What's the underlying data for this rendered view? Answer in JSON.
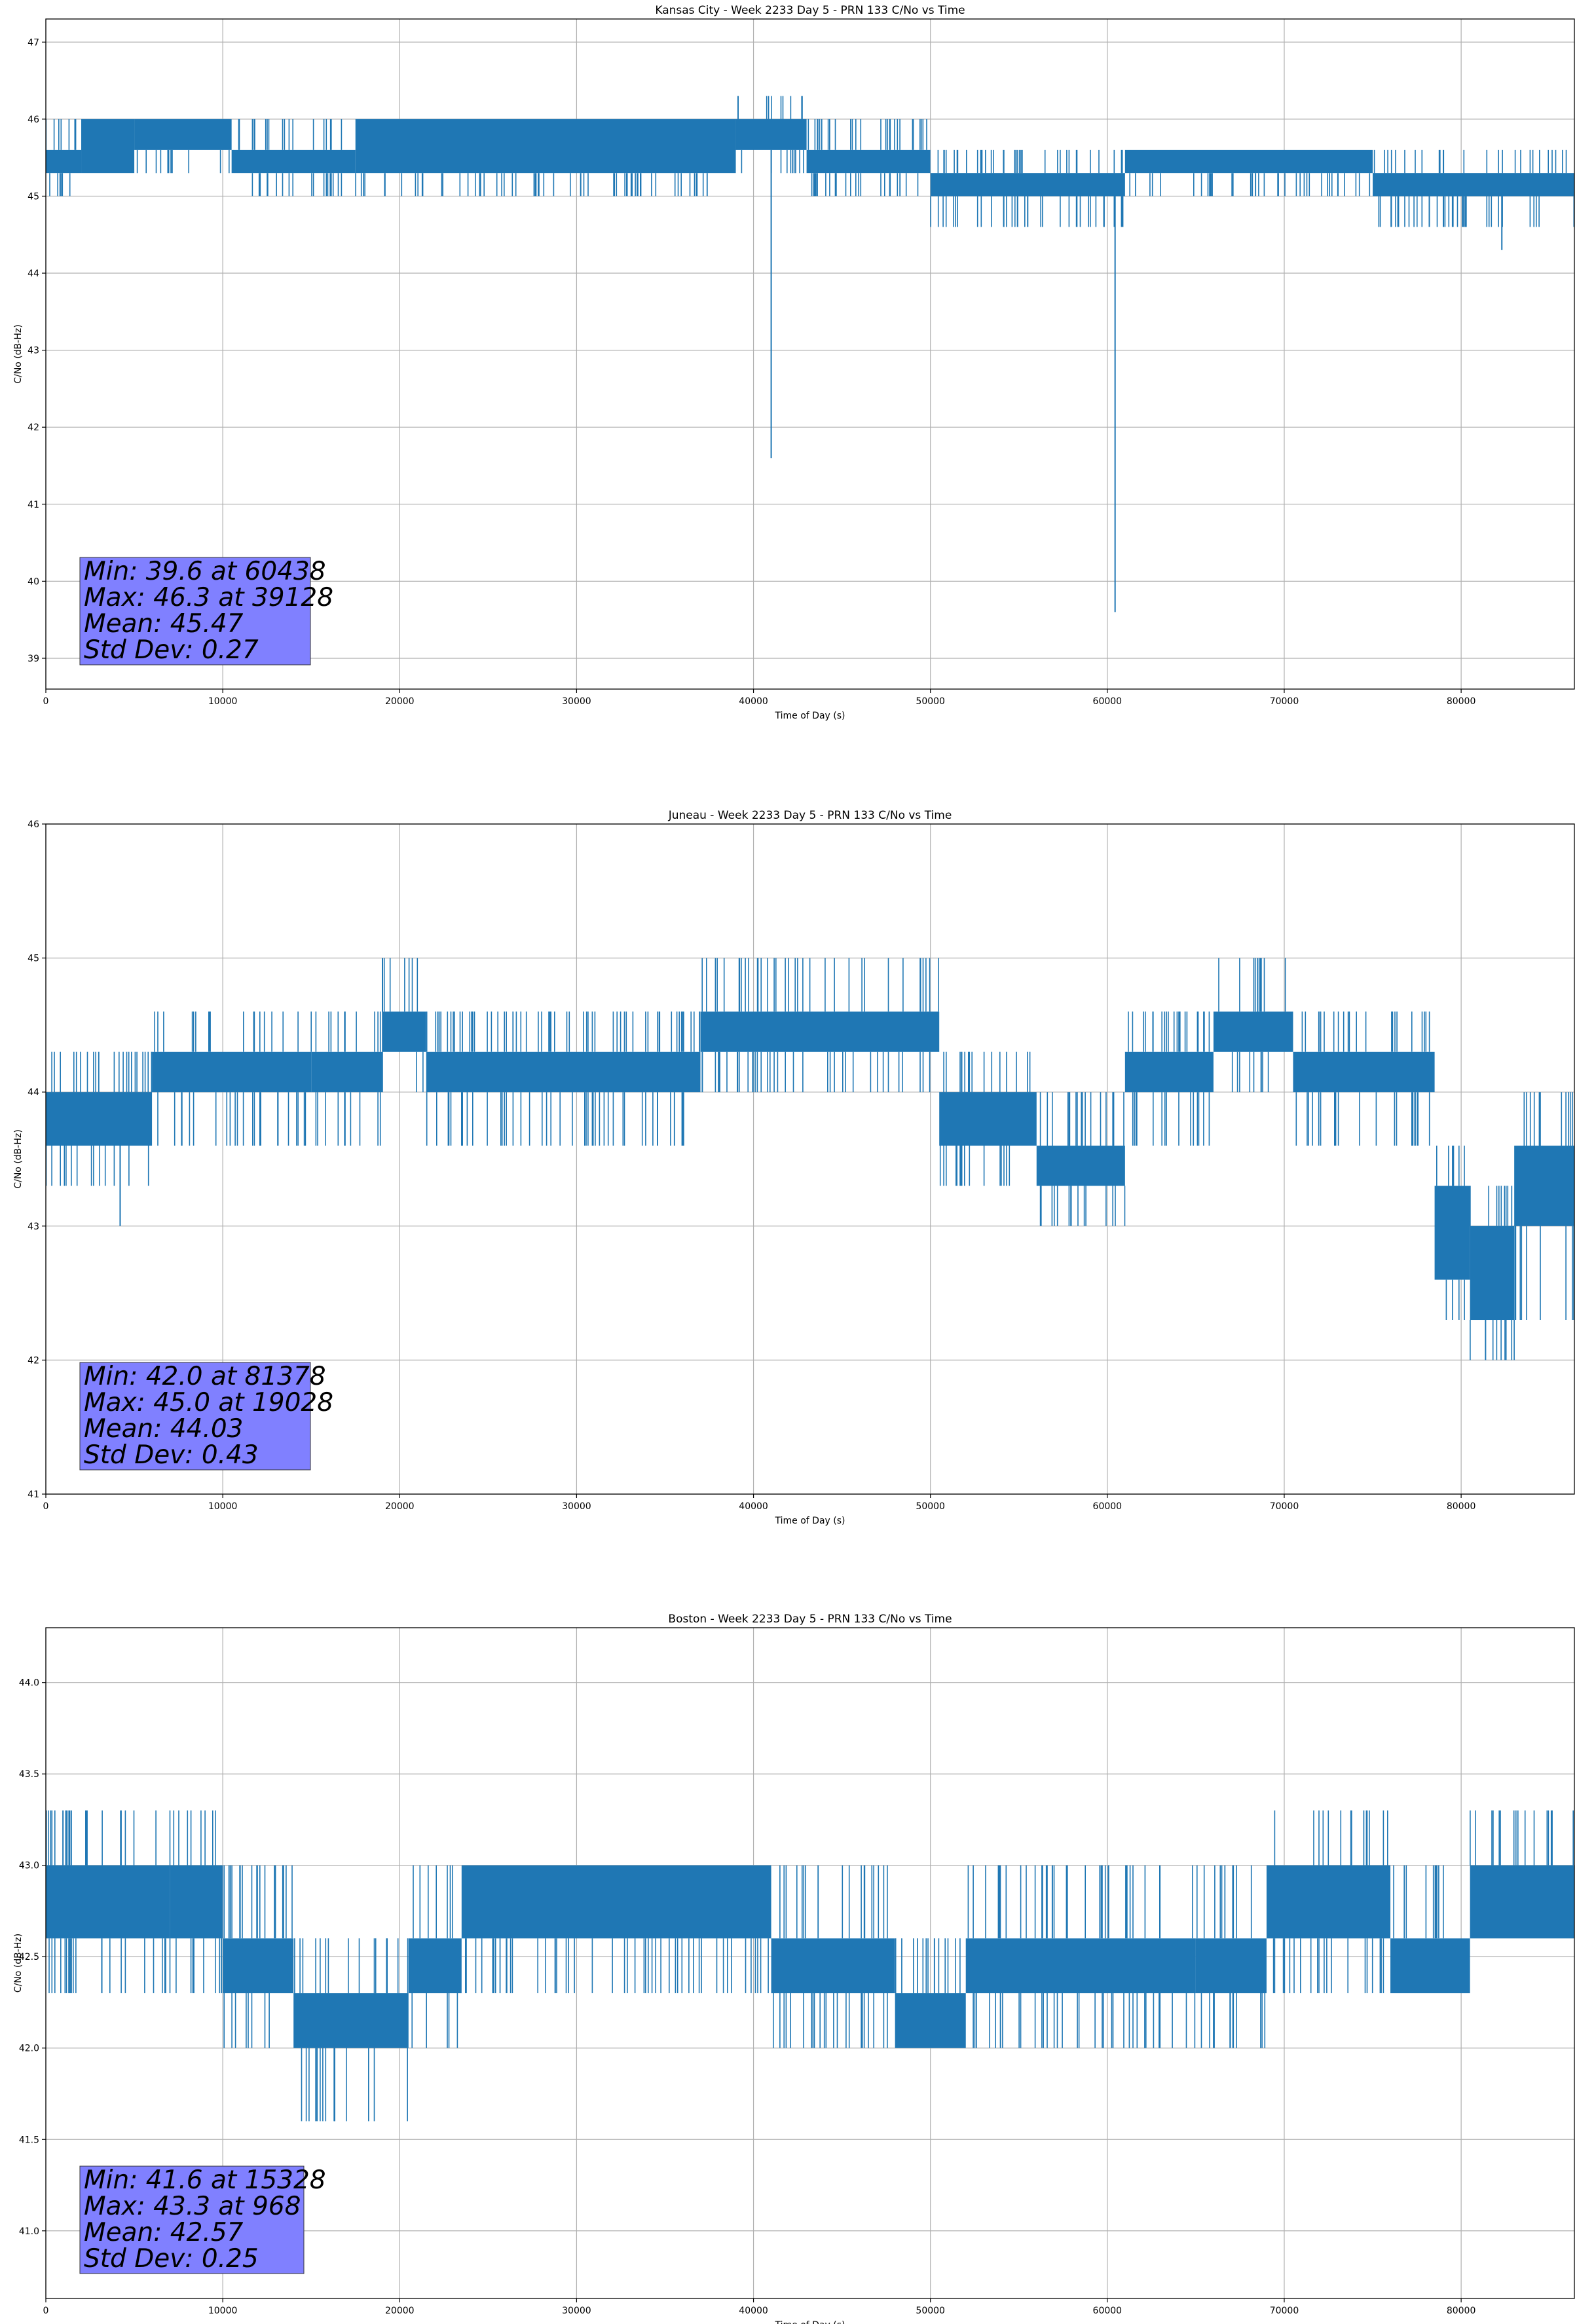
{
  "figure": {
    "colors": {
      "line": "#1f77b4",
      "grid": "#b0b0b0",
      "stats_box": "#8080ff"
    }
  },
  "chart_data": [
    {
      "type": "line",
      "title": "Kansas City - Week 2233 Day 5 - PRN 133 C/No vs Time",
      "xlabel": "Time of Day (s)",
      "ylabel": "C/No (dB-Hz)",
      "xlim": [
        0,
        86400
      ],
      "ylim": [
        38.6,
        47.3
      ],
      "xticks": [
        0,
        10000,
        20000,
        30000,
        40000,
        50000,
        60000,
        70000,
        80000
      ],
      "xtick_labels": [
        "0",
        "10000",
        "20000",
        "30000",
        "40000",
        "50000",
        "60000",
        "70000",
        "80000"
      ],
      "yticks": [
        39,
        40,
        41,
        42,
        43,
        44,
        45,
        46,
        47
      ],
      "ytick_labels": [
        "39",
        "40",
        "41",
        "42",
        "43",
        "44",
        "45",
        "46",
        "47"
      ],
      "grid": true,
      "series": [
        {
          "band": [
            {
              "x": [
                0,
                2000
              ],
              "low": 45.3,
              "high": 45.6,
              "spikes_up": [
                46.0
              ],
              "spikes_down": [
                45.0
              ]
            },
            {
              "x": [
                2000,
                5000
              ],
              "low": 45.3,
              "high": 46.0,
              "spikes_up": [],
              "spikes_down": [
                45.3
              ]
            },
            {
              "x": [
                5000,
                10500
              ],
              "low": 45.6,
              "high": 46.0,
              "spikes_up": [],
              "spikes_down": [
                45.3
              ]
            },
            {
              "x": [
                10500,
                17500
              ],
              "low": 45.3,
              "high": 45.6,
              "spikes_up": [
                46.0
              ],
              "spikes_down": [
                45.0
              ]
            },
            {
              "x": [
                17500,
                39000
              ],
              "low": 45.3,
              "high": 46.0,
              "spikes_up": [],
              "spikes_down": [
                45.0
              ]
            },
            {
              "x": [
                39000,
                43000
              ],
              "low": 45.6,
              "high": 46.0,
              "spikes_up": [
                46.3
              ],
              "spikes_down": [
                45.3
              ]
            },
            {
              "x": [
                43000,
                50000
              ],
              "low": 45.3,
              "high": 45.6,
              "spikes_up": [
                46.0
              ],
              "spikes_down": [
                45.0
              ]
            },
            {
              "x": [
                50000,
                61000
              ],
              "low": 45.0,
              "high": 45.3,
              "spikes_up": [
                45.6
              ],
              "spikes_down": [
                44.6
              ]
            },
            {
              "x": [
                61000,
                75000
              ],
              "low": 45.3,
              "high": 45.6,
              "spikes_up": [],
              "spikes_down": [
                45.0
              ]
            },
            {
              "x": [
                75000,
                86400
              ],
              "low": 45.0,
              "high": 45.3,
              "spikes_up": [
                45.6
              ],
              "spikes_down": [
                44.6
              ]
            }
          ],
          "spikes": [
            {
              "x": 39128,
              "y": 46.3
            },
            {
              "x": 41000,
              "y": 41.6
            },
            {
              "x": 60438,
              "y": 39.6
            },
            {
              "x": 55500,
              "y": 44.6
            },
            {
              "x": 78200,
              "y": 44.6
            },
            {
              "x": 82300,
              "y": 44.3
            }
          ]
        }
      ],
      "stats_text": [
        "Min: 39.6 at 60438",
        "Max: 46.3 at 39128",
        "Mean: 45.47",
        "Std Dev: 0.27"
      ]
    },
    {
      "type": "line",
      "title": "Juneau - Week 2233 Day 5 - PRN 133 C/No vs Time",
      "xlabel": "Time of Day (s)",
      "ylabel": "C/No (dB-Hz)",
      "xlim": [
        0,
        86400
      ],
      "ylim": [
        41,
        46
      ],
      "xticks": [
        0,
        10000,
        20000,
        30000,
        40000,
        50000,
        60000,
        70000,
        80000
      ],
      "xtick_labels": [
        "0",
        "10000",
        "20000",
        "30000",
        "40000",
        "50000",
        "60000",
        "70000",
        "80000"
      ],
      "yticks": [
        41,
        42,
        43,
        44,
        45,
        46
      ],
      "ytick_labels": [
        "41",
        "42",
        "43",
        "44",
        "45",
        "46"
      ],
      "grid": true,
      "series": [
        {
          "band": [
            {
              "x": [
                0,
                6000
              ],
              "low": 43.6,
              "high": 44.0,
              "spikes_up": [
                44.3
              ],
              "spikes_down": [
                43.3
              ]
            },
            {
              "x": [
                6000,
                15000
              ],
              "low": 44.0,
              "high": 44.3,
              "spikes_up": [
                44.6
              ],
              "spikes_down": [
                43.6
              ]
            },
            {
              "x": [
                15000,
                19000
              ],
              "low": 44.0,
              "high": 44.3,
              "spikes_up": [
                44.6
              ],
              "spikes_down": [
                43.6
              ]
            },
            {
              "x": [
                19000,
                21500
              ],
              "low": 44.3,
              "high": 44.6,
              "spikes_up": [
                45.0
              ],
              "spikes_down": [
                44.0
              ]
            },
            {
              "x": [
                21500,
                37000
              ],
              "low": 44.0,
              "high": 44.3,
              "spikes_up": [
                44.6
              ],
              "spikes_down": [
                43.6
              ]
            },
            {
              "x": [
                37000,
                50500
              ],
              "low": 44.3,
              "high": 44.6,
              "spikes_up": [
                45.0
              ],
              "spikes_down": [
                44.0
              ]
            },
            {
              "x": [
                50500,
                56000
              ],
              "low": 43.6,
              "high": 44.0,
              "spikes_up": [
                44.3
              ],
              "spikes_down": [
                43.3
              ]
            },
            {
              "x": [
                56000,
                61000
              ],
              "low": 43.3,
              "high": 43.6,
              "spikes_up": [
                44.0
              ],
              "spikes_down": [
                43.0
              ]
            },
            {
              "x": [
                61000,
                66000
              ],
              "low": 44.0,
              "high": 44.3,
              "spikes_up": [
                44.6
              ],
              "spikes_down": [
                43.6
              ]
            },
            {
              "x": [
                66000,
                70500
              ],
              "low": 44.3,
              "high": 44.6,
              "spikes_up": [
                45.0
              ],
              "spikes_down": [
                44.0
              ]
            },
            {
              "x": [
                70500,
                78500
              ],
              "low": 44.0,
              "high": 44.3,
              "spikes_up": [
                44.6
              ],
              "spikes_down": [
                43.6
              ]
            },
            {
              "x": [
                78500,
                80500
              ],
              "low": 42.6,
              "high": 43.3,
              "spikes_up": [
                43.6
              ],
              "spikes_down": [
                42.3
              ]
            },
            {
              "x": [
                80500,
                83000
              ],
              "low": 42.3,
              "high": 43.0,
              "spikes_up": [
                43.3
              ],
              "spikes_down": [
                42.0
              ]
            },
            {
              "x": [
                83000,
                86400
              ],
              "low": 43.0,
              "high": 43.6,
              "spikes_up": [
                44.0
              ],
              "spikes_down": [
                42.3
              ]
            }
          ],
          "spikes": [
            {
              "x": 4200,
              "y": 43.0
            },
            {
              "x": 19028,
              "y": 45.0
            },
            {
              "x": 68500,
              "y": 45.0
            },
            {
              "x": 81378,
              "y": 42.0
            }
          ]
        }
      ],
      "stats_text": [
        "Min: 42.0 at 81378",
        "Max: 45.0 at 19028",
        "Mean: 44.03",
        "Std Dev: 0.43"
      ]
    },
    {
      "type": "line",
      "title": "Boston - Week 2233 Day 5 - PRN 133 C/No vs Time",
      "xlabel": "Time of Day (s)",
      "ylabel": "C/No (dB-Hz)",
      "xlim": [
        0,
        86400
      ],
      "ylim": [
        40.63,
        44.3
      ],
      "xticks": [
        0,
        10000,
        20000,
        30000,
        40000,
        50000,
        60000,
        70000,
        80000
      ],
      "xtick_labels": [
        "0",
        "10000",
        "20000",
        "30000",
        "40000",
        "50000",
        "60000",
        "70000",
        "80000"
      ],
      "yticks": [
        41.0,
        41.5,
        42.0,
        42.5,
        43.0,
        43.5,
        44.0
      ],
      "ytick_labels": [
        "41.0",
        "41.5",
        "42.0",
        "42.5",
        "43.0",
        "43.5",
        "44.0"
      ],
      "grid": true,
      "series": [
        {
          "band": [
            {
              "x": [
                0,
                7000
              ],
              "low": 42.6,
              "high": 43.0,
              "spikes_up": [
                43.3
              ],
              "spikes_down": [
                42.3
              ]
            },
            {
              "x": [
                7000,
                10000
              ],
              "low": 42.6,
              "high": 43.0,
              "spikes_up": [
                43.3
              ],
              "spikes_down": [
                42.3
              ]
            },
            {
              "x": [
                10000,
                14000
              ],
              "low": 42.3,
              "high": 42.6,
              "spikes_up": [
                43.0
              ],
              "spikes_down": [
                42.0
              ]
            },
            {
              "x": [
                14000,
                20500
              ],
              "low": 42.0,
              "high": 42.3,
              "spikes_up": [
                42.6
              ],
              "spikes_down": [
                41.6
              ]
            },
            {
              "x": [
                20500,
                23500
              ],
              "low": 42.3,
              "high": 42.6,
              "spikes_up": [
                43.0
              ],
              "spikes_down": [
                42.0
              ]
            },
            {
              "x": [
                23500,
                41000
              ],
              "low": 42.6,
              "high": 43.0,
              "spikes_up": [],
              "spikes_down": [
                42.3
              ]
            },
            {
              "x": [
                41000,
                48000
              ],
              "low": 42.3,
              "high": 42.6,
              "spikes_up": [
                43.0
              ],
              "spikes_down": [
                42.0
              ]
            },
            {
              "x": [
                48000,
                52000
              ],
              "low": 42.0,
              "high": 42.3,
              "spikes_up": [
                42.6
              ],
              "spikes_down": [
                42.0
              ]
            },
            {
              "x": [
                52000,
                65000
              ],
              "low": 42.3,
              "high": 42.6,
              "spikes_up": [
                43.0
              ],
              "spikes_down": [
                42.0
              ]
            },
            {
              "x": [
                65000,
                69000
              ],
              "low": 42.3,
              "high": 42.6,
              "spikes_up": [
                43.0
              ],
              "spikes_down": [
                42.0
              ]
            },
            {
              "x": [
                69000,
                76000
              ],
              "low": 42.6,
              "high": 43.0,
              "spikes_up": [
                43.3
              ],
              "spikes_down": [
                42.3
              ]
            },
            {
              "x": [
                76000,
                80500
              ],
              "low": 42.3,
              "high": 42.6,
              "spikes_up": [
                43.0
              ],
              "spikes_down": [
                42.3
              ]
            },
            {
              "x": [
                80500,
                86400
              ],
              "low": 42.6,
              "high": 43.0,
              "spikes_up": [
                43.3
              ],
              "spikes_down": [
                42.6
              ]
            }
          ],
          "spikes": [
            {
              "x": 968,
              "y": 43.3
            },
            {
              "x": 15328,
              "y": 41.6
            },
            {
              "x": 16300,
              "y": 41.6
            },
            {
              "x": 73800,
              "y": 43.3
            }
          ]
        }
      ],
      "stats_text": [
        "Min: 41.6 at 15328",
        "Max: 43.3 at 968",
        "Mean: 42.57",
        "Std Dev: 0.25"
      ]
    }
  ]
}
